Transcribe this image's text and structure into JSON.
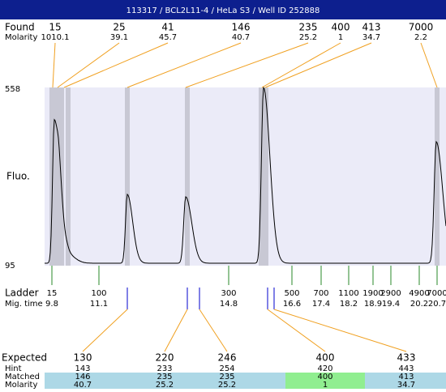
{
  "header": {
    "title": "113317 / BCL2L11-4 / HeLa S3 / Well ID 252888"
  },
  "found": {
    "label": "Found",
    "molarity_label": "Molarity",
    "sizes": [
      15,
      25,
      41,
      146,
      235,
      400,
      413,
      7000
    ],
    "molarity": [
      1010.1,
      39.1,
      45.7,
      40.7,
      25.2,
      1,
      34.7,
      2.2
    ]
  },
  "plot": {
    "y_label": "Fluo.",
    "y_top": 558,
    "y_bottom": 95
  },
  "ladder": {
    "label": "Ladder",
    "time_label": "Mig. time",
    "sizes": [
      15,
      100,
      300,
      500,
      700,
      1100,
      1900,
      2900,
      4900,
      7000
    ],
    "times": [
      9.8,
      11.1,
      14.8,
      16.6,
      17.4,
      18.2,
      18.9,
      19.4,
      20.2,
      20.7
    ]
  },
  "table": {
    "row_labels": [
      "Expected",
      "Hint",
      "Matched",
      "Molarity"
    ],
    "expected": [
      130,
      220,
      246,
      400,
      433
    ],
    "hint": [
      143,
      233,
      254,
      420,
      443
    ],
    "matched": [
      146,
      235,
      235,
      400,
      413
    ],
    "molarity": [
      40.7,
      25.2,
      25.2,
      1,
      34.7
    ]
  }
}
